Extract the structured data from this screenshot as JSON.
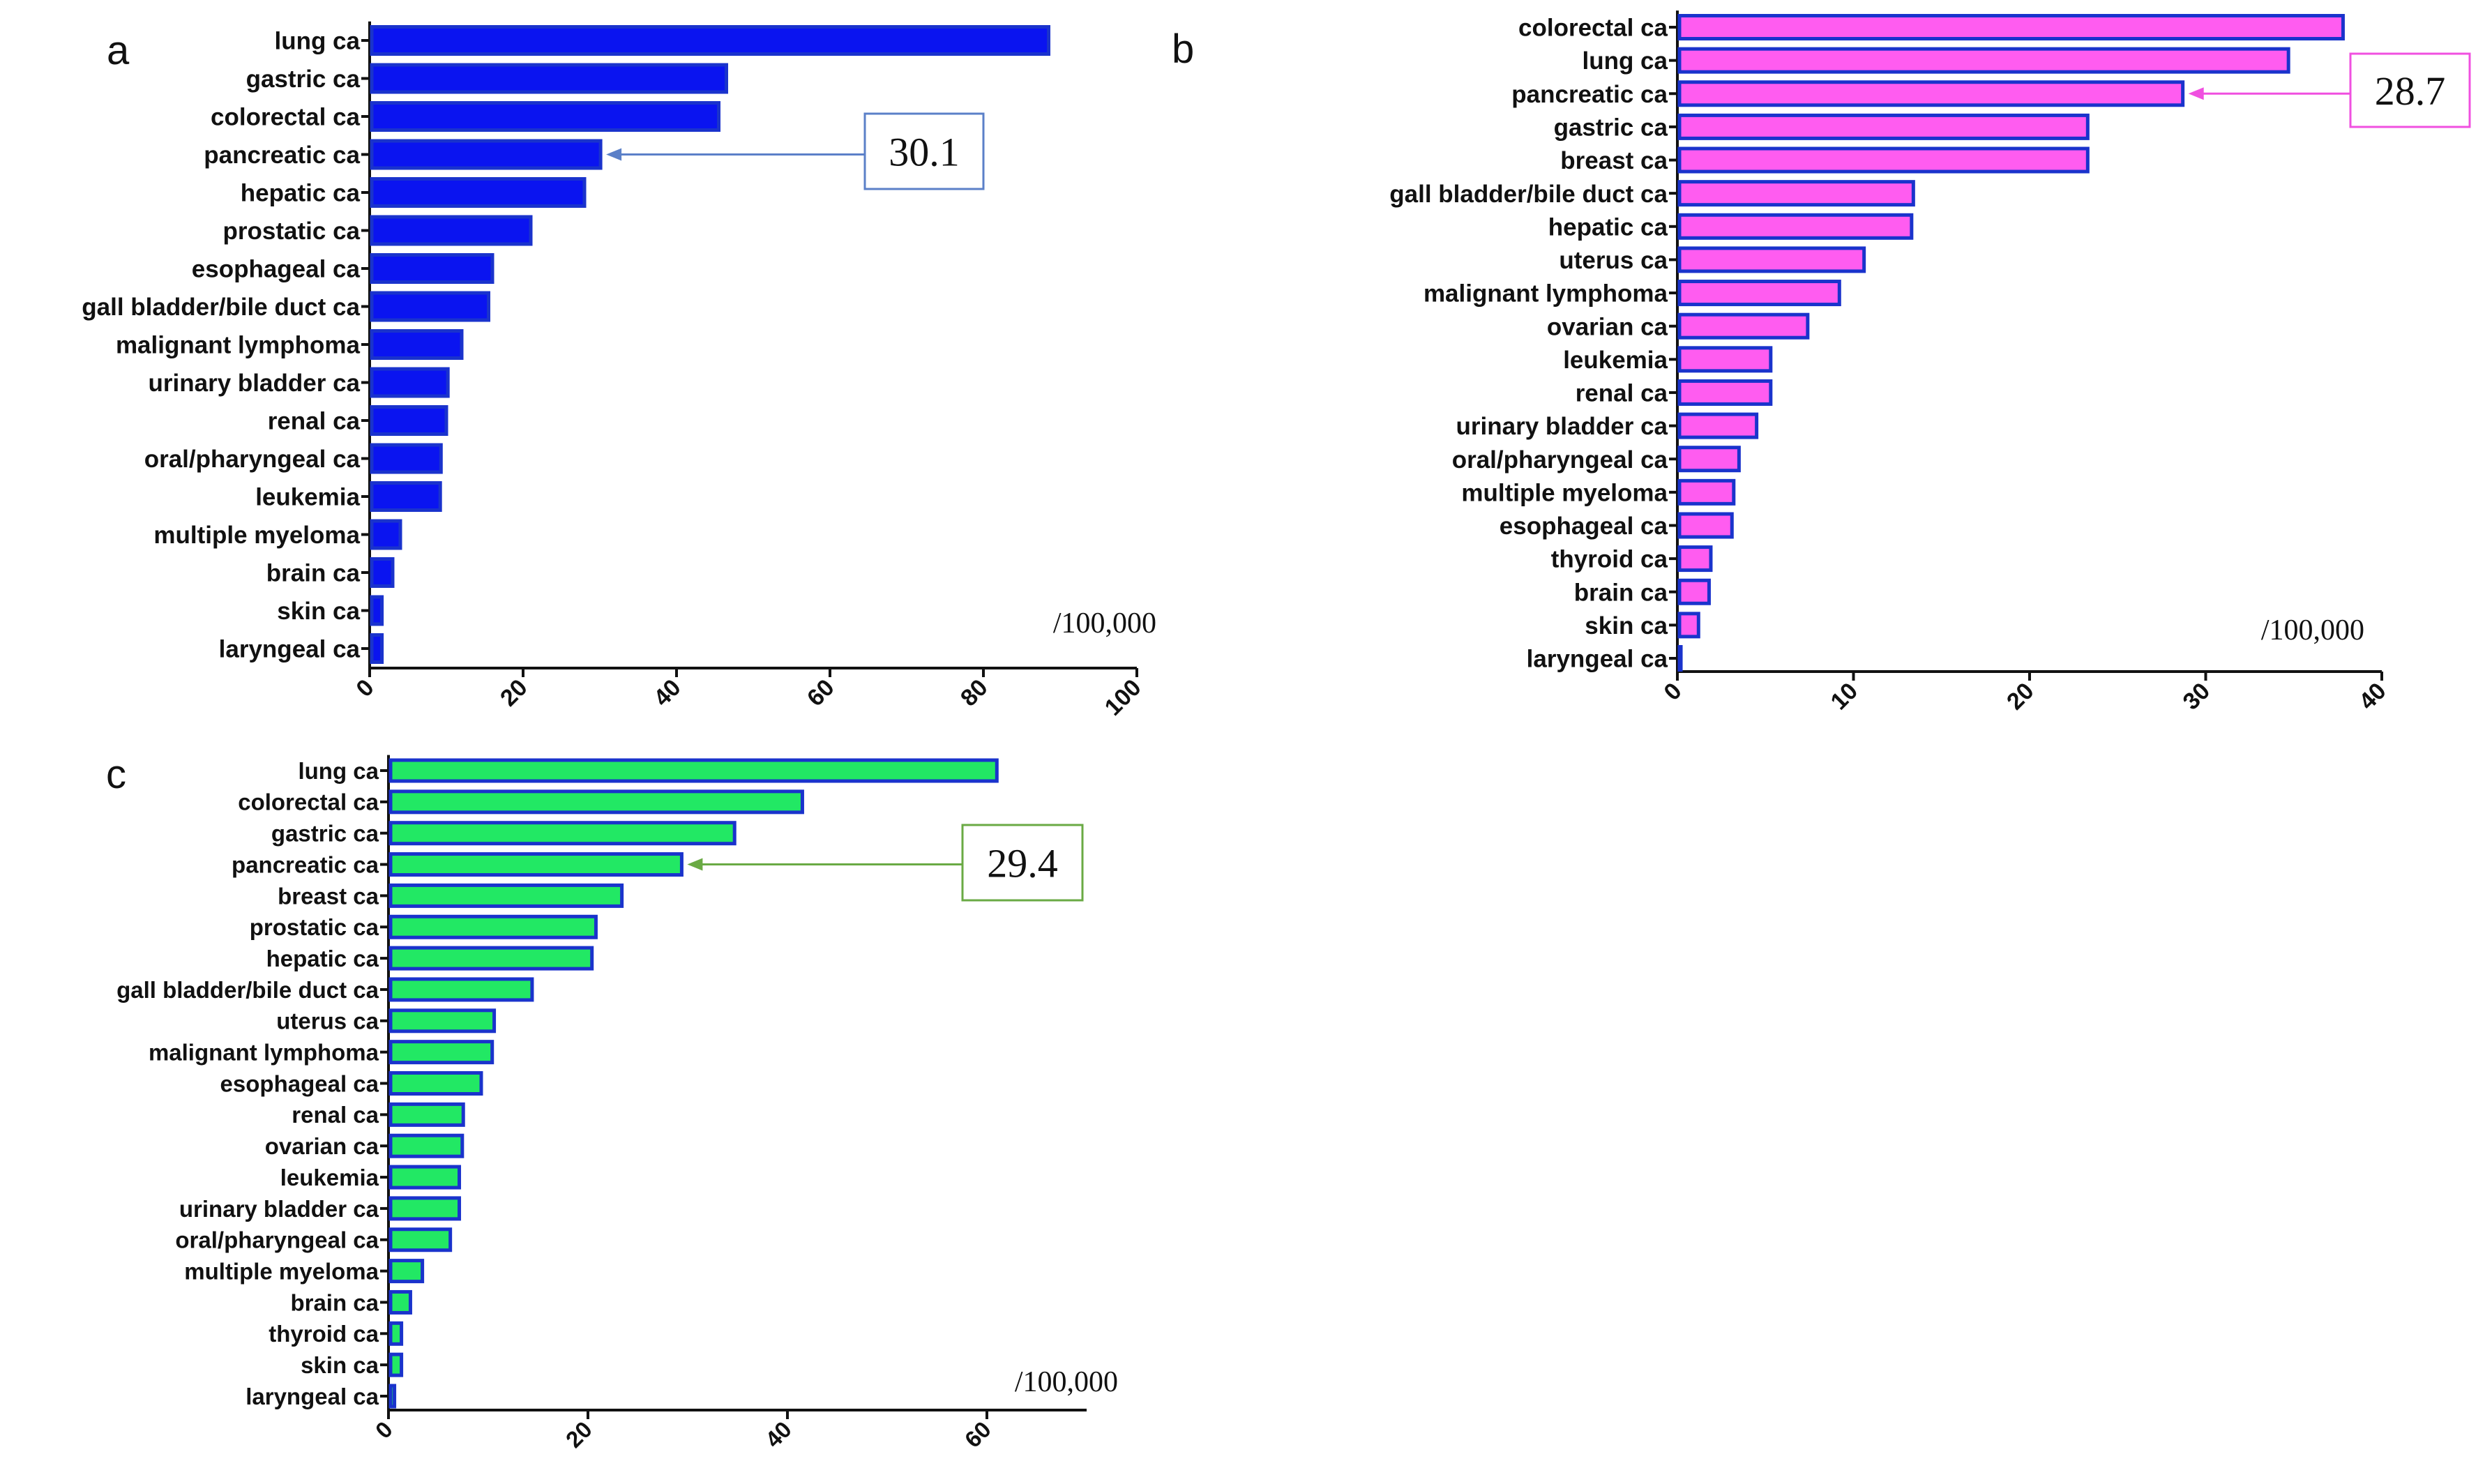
{
  "chart_data": [
    {
      "type": "bar",
      "orientation": "horizontal",
      "panel_label": "a",
      "unit_label": "/100,000",
      "categories": [
        "lung ca",
        "gastric ca",
        "colorectal ca",
        "pancreatic ca",
        "hepatic ca",
        "prostatic ca",
        "esophageal ca",
        "gall bladder/bile duct ca",
        "malignant lymphoma",
        "urinary bladder ca",
        "renal ca",
        "oral/pharyngeal ca",
        "leukemia",
        "multiple myeloma",
        "brain ca",
        "skin ca",
        "laryngeal ca"
      ],
      "values": [
        88.5,
        46.5,
        45.5,
        30.1,
        28,
        21,
        16,
        15.5,
        12,
        10.2,
        10,
        9.3,
        9.2,
        4,
        3,
        1.6,
        1.6
      ],
      "xlim": [
        0,
        100
      ],
      "xticks": [
        "0",
        "20",
        "40",
        "60",
        "80",
        "100"
      ],
      "tick_values": [
        0,
        20,
        40,
        60,
        80,
        100
      ],
      "highlight": {
        "category": "pancreatic ca",
        "value_label": "30.1"
      },
      "colors": {
        "fill": "#0a14f0",
        "stroke": "#1a33cc",
        "arrow": "#5b80c8",
        "box": "#5b80c8"
      }
    },
    {
      "type": "bar",
      "orientation": "horizontal",
      "panel_label": "b",
      "unit_label": "/100,000",
      "categories": [
        "colorectal ca",
        "lung ca",
        "pancreatic ca",
        "gastric ca",
        "breast ca",
        "gall bladder/bile duct ca",
        "hepatic ca",
        "uterus ca",
        "malignant lymphoma",
        "ovarian ca",
        "leukemia",
        "renal ca",
        "urinary bladder ca",
        "oral/pharyngeal ca",
        "multiple myeloma",
        "esophageal ca",
        "thyroid ca",
        "brain ca",
        "skin ca",
        "laryngeal ca"
      ],
      "values": [
        37.8,
        34.7,
        28.7,
        23.3,
        23.3,
        13.4,
        13.3,
        10.6,
        9.2,
        7.4,
        5.3,
        5.3,
        4.5,
        3.5,
        3.2,
        3.1,
        1.9,
        1.8,
        1.2,
        0.2
      ],
      "xlim": [
        0,
        40
      ],
      "xticks": [
        "0",
        "10",
        "20",
        "30",
        "40"
      ],
      "tick_values": [
        0,
        10,
        20,
        30,
        40
      ],
      "highlight": {
        "category": "pancreatic ca",
        "value_label": "28.7"
      },
      "colors": {
        "fill": "#ff5cf0",
        "stroke": "#1a33cc",
        "arrow": "#f050e0",
        "box": "#f050e0"
      }
    },
    {
      "type": "bar",
      "orientation": "horizontal",
      "panel_label": "c",
      "unit_label": "/100,000",
      "categories": [
        "lung ca",
        "colorectal ca",
        "gastric ca",
        "pancreatic ca",
        "breast ca",
        "prostatic ca",
        "hepatic ca",
        "gall bladder/bile duct ca",
        "uterus ca",
        "malignant lymphoma",
        "esophageal ca",
        "renal ca",
        "ovarian ca",
        "leukemia",
        "urinary bladder ca",
        "oral/pharyngeal ca",
        "multiple myeloma",
        "brain ca",
        "thyroid ca",
        "skin ca",
        "laryngeal ca"
      ],
      "values": [
        61,
        41.5,
        34.7,
        29.4,
        23.4,
        20.8,
        20.4,
        14.4,
        10.6,
        10.4,
        9.3,
        7.5,
        7.4,
        7.1,
        7.1,
        6.2,
        3.4,
        2.2,
        1.3,
        1.3,
        0.6
      ],
      "xlim": [
        0,
        70
      ],
      "xticks": [
        "0",
        "20",
        "40",
        "60"
      ],
      "tick_values": [
        0,
        20,
        40,
        60
      ],
      "highlight": {
        "category": "pancreatic ca",
        "value_label": "29.4"
      },
      "colors": {
        "fill": "#22e864",
        "stroke": "#1a33cc",
        "arrow": "#6aaa44",
        "box": "#6aaa44"
      }
    }
  ]
}
